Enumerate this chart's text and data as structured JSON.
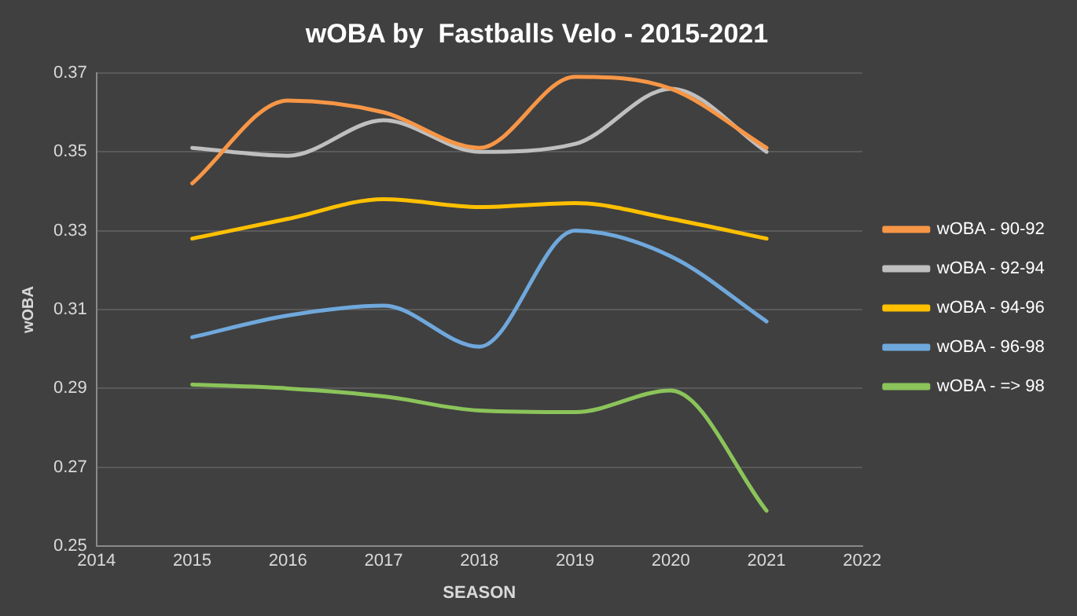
{
  "chart_data": {
    "type": "line",
    "title": "wOBA by  Fastballs Velo - 2015-2021",
    "xlabel": "SEASON",
    "ylabel": "wOBA",
    "x": [
      2015,
      2016,
      2017,
      2018,
      2019,
      2020,
      2021
    ],
    "series": [
      {
        "name": "wOBA - 90-92",
        "color": "#f79646",
        "values": [
          0.342,
          0.363,
          0.36,
          0.351,
          0.369,
          0.366,
          0.351
        ]
      },
      {
        "name": "wOBA - 92-94",
        "color": "#bfbfbf",
        "values": [
          0.351,
          0.349,
          0.358,
          0.35,
          0.352,
          0.366,
          0.35
        ]
      },
      {
        "name": "wOBA - 94-96",
        "color": "#ffc000",
        "values": [
          0.328,
          0.333,
          0.338,
          0.336,
          0.337,
          0.333,
          0.328
        ]
      },
      {
        "name": "wOBA - 96-98",
        "color": "#6fa8dc",
        "values": [
          0.303,
          0.3085,
          0.311,
          0.3006,
          0.33,
          0.3235,
          0.307
        ]
      },
      {
        "name": "wOBA - => 98",
        "color": "#8bc45a",
        "values": [
          0.291,
          0.29,
          0.288,
          0.2844,
          0.284,
          0.2895,
          0.259
        ]
      }
    ],
    "xlim": [
      2014,
      2022
    ],
    "xticks": [
      2014,
      2015,
      2016,
      2017,
      2018,
      2019,
      2020,
      2021,
      2022
    ],
    "ylim": [
      0.25,
      0.37
    ],
    "yticks": [
      0.25,
      0.27,
      0.29,
      0.31,
      0.33,
      0.35,
      0.37
    ],
    "grid": "y",
    "legend": "right",
    "marker": "none",
    "line_style": "solid"
  }
}
